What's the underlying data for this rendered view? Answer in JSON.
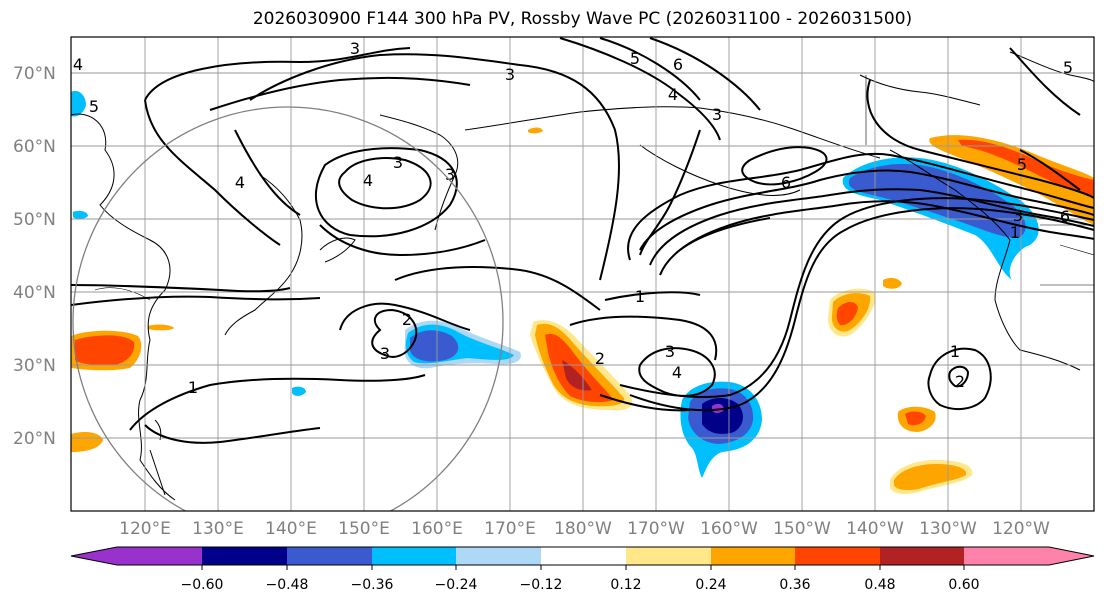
{
  "title": "2026030900 F144 300 hPa PV, Rossby Wave PC (2026031100 - 2026031500)",
  "lat_labels": [
    "70°N",
    "60°N",
    "50°N",
    "40°N",
    "30°N",
    "20°N"
  ],
  "lon_labels": [
    "120°E",
    "130°E",
    "140°E",
    "150°E",
    "160°E",
    "170°E",
    "180°W",
    "170°W",
    "160°W",
    "150°W",
    "140°W",
    "130°W",
    "120°W"
  ],
  "colorbar": {
    "ticks": [
      "−0.60",
      "−0.48",
      "−0.36",
      "−0.24",
      "−0.12",
      "0.12",
      "0.24",
      "0.36",
      "0.48",
      "0.60"
    ],
    "colors": [
      "#9932cc",
      "#00008b",
      "#3a5bcf",
      "#00bfff",
      "#add8f6",
      "#ffffff",
      "#ffe78a",
      "#ffa500",
      "#ff4500",
      "#b22222",
      "#ff82ab"
    ]
  },
  "contour_labels": [
    "3",
    "5",
    "6",
    "4",
    "3",
    "3",
    "4",
    "5",
    "6",
    "3",
    "4",
    "4",
    "2",
    "3",
    "1",
    "1",
    "3",
    "4",
    "2",
    "1",
    "2",
    "5",
    "6",
    "5",
    "3",
    "1",
    "3"
  ]
}
